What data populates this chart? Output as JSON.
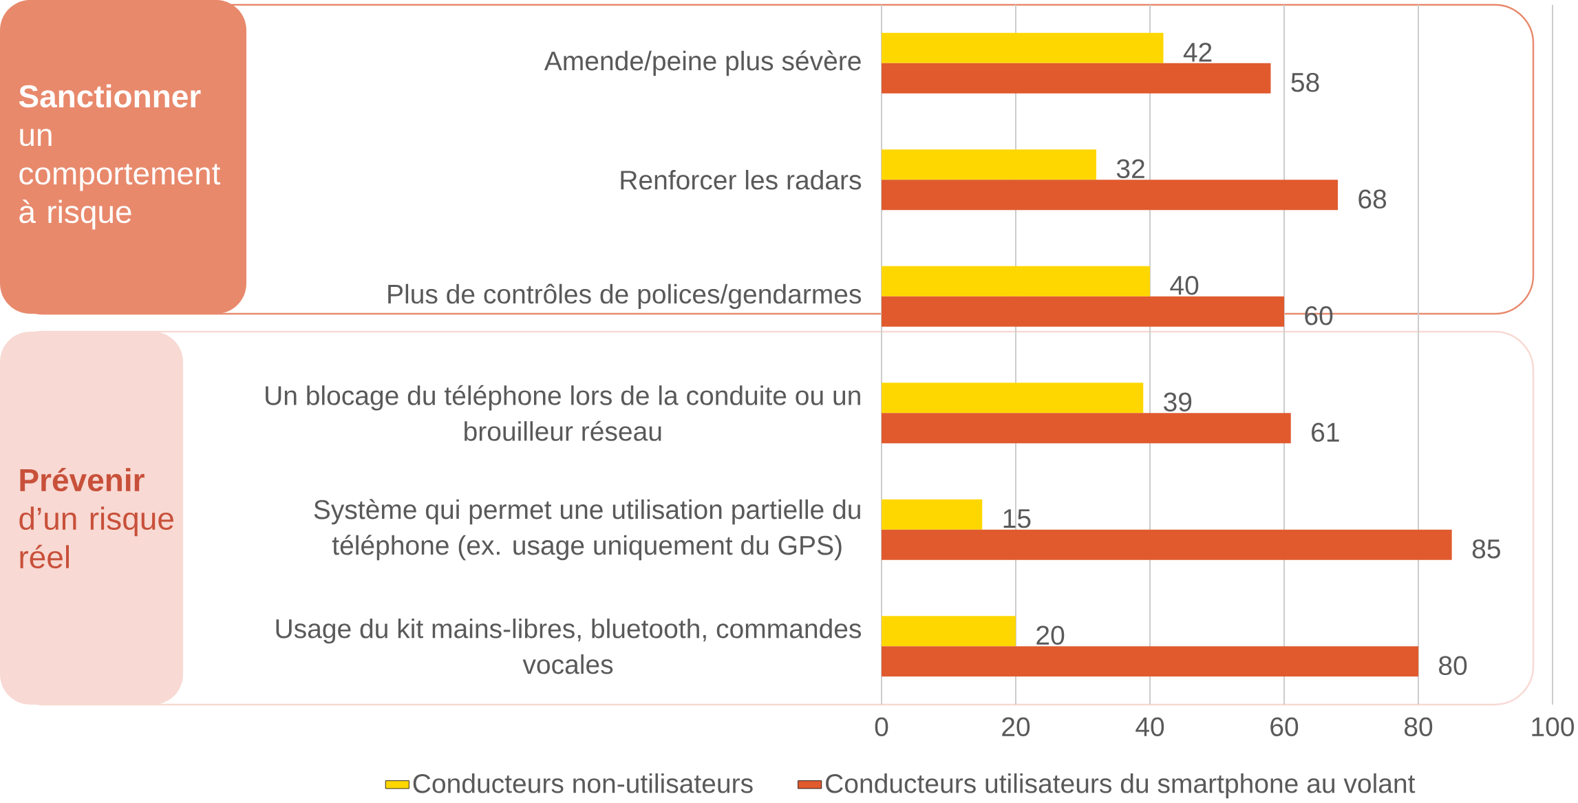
{
  "chart_data": {
    "type": "bar",
    "orientation": "horizontal",
    "categories": [
      "Amende/peine plus sévère",
      "Renforcer les radars",
      "Plus de contrôles de polices/gendarmes",
      "Un blocage du téléphone lors de la conduite ou un brouilleur réseau",
      "Système qui permet une utilisation partielle du téléphone (ex. usage uniquement du GPS)",
      "Usage du kit mains-libres, bluetooth, commandes vocales"
    ],
    "series": [
      {
        "name": "Conducteurs non-utilisateurs",
        "color": "#ffd700",
        "values": [
          42,
          32,
          40,
          39,
          15,
          20
        ]
      },
      {
        "name": "Conducteurs utilisateurs du smartphone au volant",
        "color": "#e05a2e",
        "values": [
          58,
          68,
          60,
          61,
          85,
          80
        ]
      }
    ],
    "xlim": [
      0,
      100
    ],
    "xticks": [
      0,
      20,
      40,
      60,
      80,
      100
    ],
    "grid": "x",
    "legend": "bottom",
    "data_labels": true,
    "annotations": [
      "**Sanctionner** un comportement à risque",
      "**Prévenir** d’un risque réel"
    ]
  }
}
